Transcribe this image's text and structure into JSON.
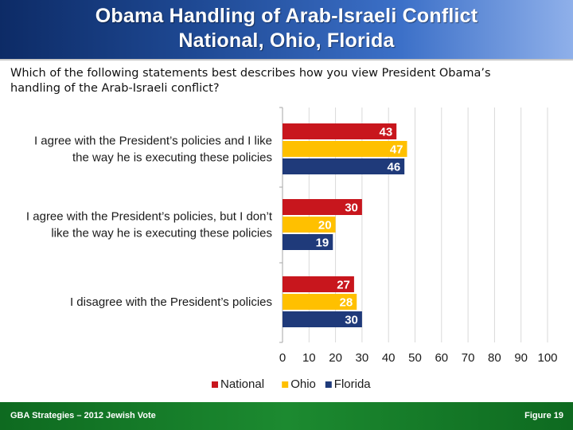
{
  "header": {
    "title_line1": "Obama Handling of Arab-Israeli Conflict",
    "title_line2": "National, Ohio, Florida"
  },
  "question": "Which of the following statements best describes how you view President Obama’s handling of the Arab-Israeli conflict?",
  "chart_data": {
    "type": "bar",
    "orientation": "horizontal",
    "categories": [
      [
        "I agree with the President’s policies and I like",
        "the way he is executing these policies"
      ],
      [
        "I agree with the President’s policies, but I don’t",
        "like the way he is executing these policies"
      ],
      [
        "I disagree with the President’s policies"
      ]
    ],
    "series": [
      {
        "name": "National",
        "color": "#c8161d",
        "values": [
          43,
          30,
          27
        ]
      },
      {
        "name": "Ohio",
        "color": "#ffc000",
        "values": [
          47,
          20,
          28
        ]
      },
      {
        "name": "Florida",
        "color": "#1f3a7a",
        "values": [
          46,
          19,
          30
        ]
      }
    ],
    "xlim": [
      0,
      100
    ],
    "xticks": [
      0,
      10,
      20,
      30,
      40,
      50,
      60,
      70,
      80,
      90,
      100
    ],
    "grid": "vertical",
    "legend": "bottom",
    "data_labels": true
  },
  "footer": {
    "left": "GBA Strategies – 2012 Jewish Vote",
    "right": "Figure 19"
  }
}
